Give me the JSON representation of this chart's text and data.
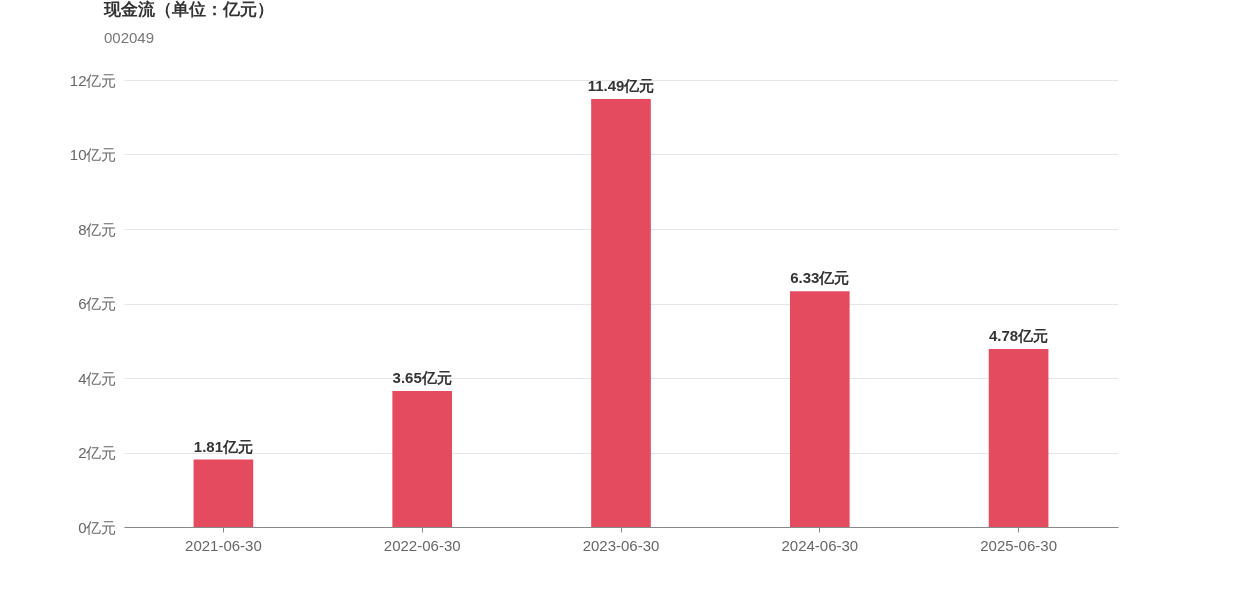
{
  "chart_data": {
    "type": "bar",
    "title": "现金流（单位：亿元）",
    "subtitle": "002049",
    "categories": [
      "2021-06-30",
      "2022-06-30",
      "2023-06-30",
      "2024-06-30",
      "2025-06-30"
    ],
    "values": [
      1.81,
      3.65,
      11.49,
      6.33,
      4.78
    ],
    "value_labels": [
      "1.81亿元",
      "3.65亿元",
      "11.49亿元",
      "6.33亿元",
      "4.78亿元"
    ],
    "color": "#e54b5f",
    "ylim": [
      0,
      12
    ],
    "yticks": [
      {
        "value": 0,
        "label": "0亿元"
      },
      {
        "value": 2,
        "label": "2亿元"
      },
      {
        "value": 4,
        "label": "4亿元"
      },
      {
        "value": 6,
        "label": "6亿元"
      },
      {
        "value": 8,
        "label": "8亿元"
      },
      {
        "value": 10,
        "label": "10亿元"
      },
      {
        "value": 12,
        "label": "12亿元"
      }
    ],
    "grid": "y"
  }
}
